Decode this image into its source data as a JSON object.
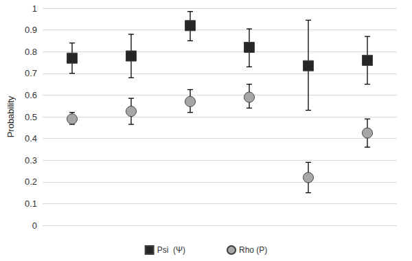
{
  "chart_data": {
    "type": "scatter",
    "y_label": "Probability",
    "categories": [
      null,
      null,
      null,
      null,
      null,
      null
    ],
    "series": [
      {
        "name": "Psi  (Ψ)",
        "color": "#262626",
        "marker": "square",
        "values": [
          0.77,
          0.78,
          0.92,
          0.82,
          0.735,
          0.76
        ],
        "lower": [
          0.7,
          0.68,
          0.85,
          0.73,
          0.53,
          0.65
        ],
        "upper": [
          0.84,
          0.88,
          0.985,
          0.905,
          0.945,
          0.87
        ]
      },
      {
        "name": "Rho (P)",
        "color": "#a6a6a6",
        "marker": "circle",
        "values": [
          0.49,
          0.525,
          0.57,
          0.59,
          0.22,
          0.425
        ],
        "lower": [
          0.465,
          0.465,
          0.52,
          0.54,
          0.15,
          0.36
        ],
        "upper": [
          0.52,
          0.585,
          0.625,
          0.65,
          0.29,
          0.49
        ]
      }
    ],
    "ylim": [
      0,
      1
    ],
    "yticks": [
      0,
      0.1,
      0.2,
      0.3,
      0.4,
      0.5,
      0.6,
      0.7,
      0.8,
      0.9,
      1
    ],
    "grid": true,
    "legend": "bottom",
    "tick_labels": "y"
  }
}
